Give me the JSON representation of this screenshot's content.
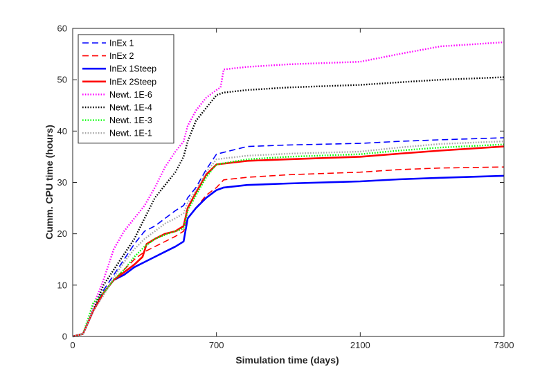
{
  "chart_data": {
    "type": "line",
    "title": "",
    "xlabel": "Simulation time (days)",
    "ylabel": "Cumm. CPU time (hours)",
    "ylim": [
      0,
      60
    ],
    "yticks": [
      0,
      10,
      20,
      30,
      40,
      50,
      60
    ],
    "xticks": [
      0,
      700,
      2100,
      7300
    ],
    "x_scale": "piecewise-linear (ticks equally spaced)",
    "grid": false,
    "legend_position": "top-left",
    "series": [
      {
        "name": "InEx 1",
        "color": "#0000ff",
        "style": "dashed",
        "x": [
          0,
          50,
          100,
          150,
          200,
          250,
          300,
          350,
          400,
          450,
          500,
          540,
          560,
          600,
          650,
          700,
          1000,
          1400,
          2100,
          3500,
          5000,
          7300
        ],
        "y": [
          0,
          0.5,
          5,
          9,
          12,
          15,
          18,
          20.5,
          21.5,
          23,
          24.5,
          25.5,
          27,
          29,
          32.5,
          35.5,
          37,
          37.3,
          37.6,
          38,
          38.3,
          38.7
        ]
      },
      {
        "name": "InEx 2",
        "color": "#ff0000",
        "style": "dashed",
        "x": [
          0,
          50,
          100,
          150,
          200,
          250,
          300,
          350,
          400,
          450,
          500,
          540,
          560,
          600,
          650,
          700,
          770,
          1000,
          1400,
          2100,
          3500,
          5000,
          7300
        ],
        "y": [
          0,
          0.5,
          5,
          8.5,
          11,
          13,
          15,
          16.5,
          17.5,
          18.5,
          19.5,
          20.5,
          23,
          25,
          27.5,
          29,
          30.5,
          31,
          31.5,
          32,
          32.5,
          32.8,
          33
        ]
      },
      {
        "name": "InEx 1Steep",
        "color": "#0000ff",
        "style": "solid",
        "x": [
          0,
          50,
          100,
          150,
          200,
          250,
          300,
          350,
          400,
          450,
          500,
          540,
          560,
          600,
          650,
          700,
          770,
          1000,
          1400,
          2100,
          3500,
          5000,
          7300
        ],
        "y": [
          0,
          0.5,
          5,
          8.5,
          11,
          12,
          13.5,
          14.5,
          15.5,
          16.5,
          17.5,
          18.5,
          23,
          25,
          27,
          28.5,
          29,
          29.5,
          29.8,
          30.2,
          30.6,
          30.9,
          31.3
        ]
      },
      {
        "name": "InEx 2Steep",
        "color": "#ff0000",
        "style": "solid",
        "x": [
          0,
          50,
          100,
          150,
          200,
          250,
          300,
          340,
          360,
          400,
          450,
          500,
          540,
          560,
          600,
          650,
          700,
          1000,
          1400,
          2100,
          3500,
          5000,
          7300
        ],
        "y": [
          0,
          0.5,
          5,
          8.5,
          11,
          12.5,
          14,
          15.5,
          18,
          19,
          20,
          20.5,
          21.5,
          25,
          28,
          31.5,
          33.5,
          34.2,
          34.5,
          35,
          35.6,
          36.2,
          37
        ]
      },
      {
        "name": "Newt. 1E-6",
        "color": "#ff00ff",
        "style": "dotted",
        "x": [
          0,
          50,
          100,
          150,
          200,
          250,
          300,
          350,
          400,
          450,
          500,
          540,
          560,
          600,
          650,
          700,
          740,
          770,
          1000,
          1400,
          2100,
          3500,
          5000,
          7300
        ],
        "y": [
          0,
          0.5,
          6,
          11,
          17,
          20.5,
          23,
          25.5,
          29,
          33,
          36,
          38,
          41,
          44,
          46.5,
          48,
          48.5,
          52,
          52.5,
          53,
          53.5,
          55,
          56.5,
          57.3
        ]
      },
      {
        "name": "Newt. 1E-4",
        "color": "#000000",
        "style": "dotted",
        "x": [
          0,
          50,
          100,
          150,
          200,
          250,
          300,
          350,
          400,
          450,
          500,
          540,
          560,
          600,
          650,
          700,
          770,
          1000,
          1400,
          2100,
          3500,
          5000,
          7300
        ],
        "y": [
          0,
          0.5,
          5,
          10,
          13,
          16,
          19,
          23,
          27,
          29.5,
          32,
          35,
          38,
          42,
          44.5,
          47,
          47.5,
          48,
          48.5,
          49,
          49.5,
          50,
          50.5
        ]
      },
      {
        "name": "Newt. 1E-3",
        "color": "#00ff00",
        "style": "dotted",
        "x": [
          0,
          50,
          100,
          150,
          200,
          250,
          300,
          350,
          400,
          450,
          500,
          540,
          560,
          600,
          650,
          700,
          1000,
          1400,
          2100,
          3500,
          5000,
          7300
        ],
        "y": [
          0,
          0.5,
          6.5,
          8.5,
          11,
          13,
          15.5,
          17.5,
          19,
          19.8,
          20.5,
          21,
          24.5,
          27.5,
          31,
          33.5,
          34.5,
          35,
          35.5,
          36.2,
          36.8,
          37.4
        ]
      },
      {
        "name": "Newt. 1E-1",
        "color": "#a6a6a6",
        "style": "dotted",
        "x": [
          0,
          50,
          100,
          150,
          200,
          250,
          300,
          350,
          400,
          450,
          500,
          540,
          560,
          600,
          650,
          700,
          1000,
          1400,
          2100,
          3500,
          5000,
          7300
        ],
        "y": [
          0,
          0.5,
          5,
          8,
          11.5,
          14.5,
          17,
          19,
          20.5,
          22,
          23,
          24,
          26,
          28.5,
          32,
          34.5,
          35.2,
          35.6,
          36,
          36.8,
          37.5,
          38
        ]
      }
    ]
  }
}
